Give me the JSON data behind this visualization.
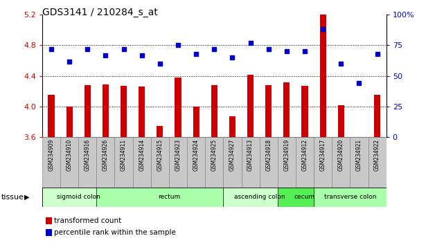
{
  "title": "GDS3141 / 210284_s_at",
  "samples": [
    "GSM234909",
    "GSM234910",
    "GSM234916",
    "GSM234926",
    "GSM234911",
    "GSM234914",
    "GSM234915",
    "GSM234923",
    "GSM234924",
    "GSM234925",
    "GSM234927",
    "GSM234913",
    "GSM234918",
    "GSM234919",
    "GSM234912",
    "GSM234917",
    "GSM234920",
    "GSM234921",
    "GSM234922"
  ],
  "bar_values": [
    4.15,
    4.0,
    4.28,
    4.29,
    4.27,
    4.26,
    3.75,
    4.38,
    4.0,
    4.28,
    3.87,
    4.42,
    4.28,
    4.32,
    4.27,
    5.2,
    4.02,
    3.6,
    4.15
  ],
  "dot_values": [
    72,
    62,
    72,
    67,
    72,
    67,
    60,
    75,
    68,
    72,
    65,
    77,
    72,
    70,
    70,
    88,
    60,
    44,
    68
  ],
  "bar_color": "#cc0000",
  "dot_color": "#0000cc",
  "ylim_left": [
    3.6,
    5.2
  ],
  "ylim_right": [
    0,
    100
  ],
  "yticks_left": [
    3.6,
    4.0,
    4.4,
    4.8,
    5.2
  ],
  "yticks_right": [
    0,
    25,
    50,
    75,
    100
  ],
  "hlines": [
    4.0,
    4.4,
    4.8
  ],
  "tissue_groups": [
    {
      "label": "sigmoid colon",
      "start": 0,
      "end": 3,
      "color": "#ccffcc"
    },
    {
      "label": "rectum",
      "start": 3,
      "end": 10,
      "color": "#aaffaa"
    },
    {
      "label": "ascending colon",
      "start": 10,
      "end": 13,
      "color": "#ccffcc"
    },
    {
      "label": "cecum",
      "start": 13,
      "end": 15,
      "color": "#55ee55"
    },
    {
      "label": "transverse colon",
      "start": 15,
      "end": 18,
      "color": "#aaffaa"
    }
  ],
  "legend_items": [
    {
      "label": "transformed count",
      "color": "#cc0000"
    },
    {
      "label": "percentile rank within the sample",
      "color": "#0000cc"
    }
  ],
  "tissue_label": "tissue",
  "bar_width": 0.35,
  "xtick_bg": "#c8c8c8",
  "xtick_border": "#888888"
}
